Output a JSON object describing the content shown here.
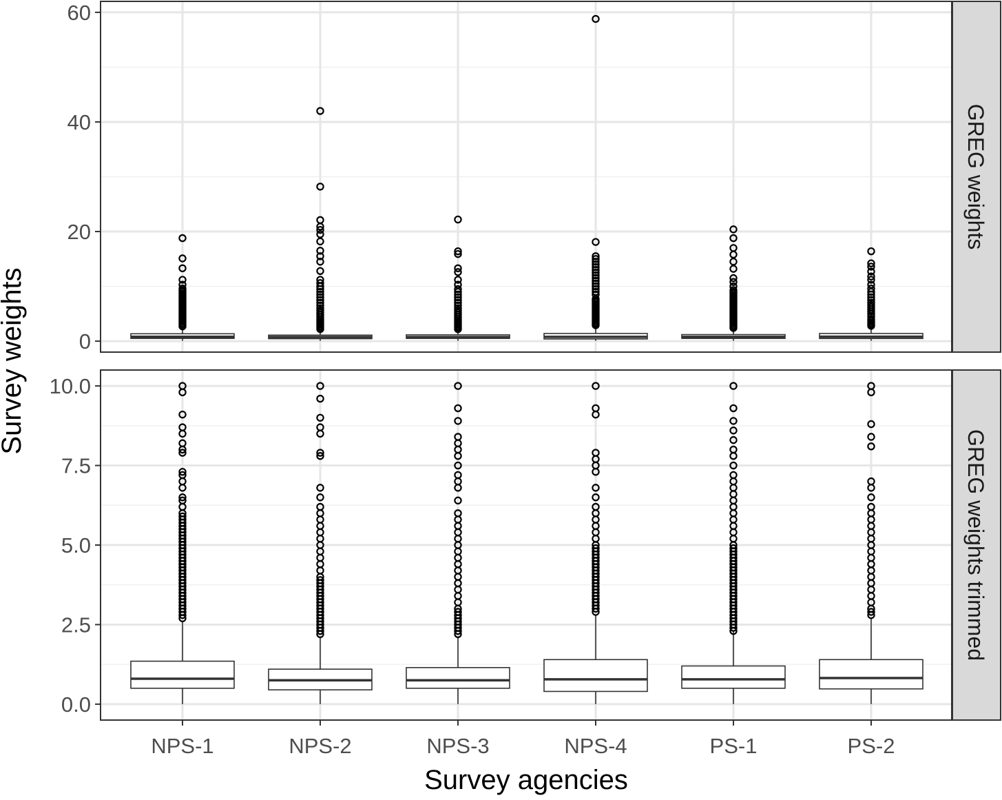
{
  "chart_data": {
    "type": "boxplot",
    "xlabel": "Survey agencies",
    "ylabel": "Survey weights",
    "categories": [
      "NPS-1",
      "NPS-2",
      "NPS-3",
      "NPS-4",
      "PS-1",
      "PS-2"
    ],
    "grid": true,
    "facets": [
      {
        "strip_label": "GREG weights",
        "ylim": [
          -2,
          62
        ],
        "yticks": [
          0,
          20,
          40,
          60
        ],
        "ytick_labels": [
          "0",
          "20",
          "40",
          "60"
        ],
        "boxes": [
          {
            "category": "NPS-1",
            "q1": 0.5,
            "median": 0.8,
            "q3": 1.35,
            "whisker_low": 0.05,
            "whisker_high": 2.6,
            "outliers": [
              2.7,
              3.0,
              3.3,
              3.6,
              3.9,
              4.2,
              4.5,
              4.8,
              5.1,
              5.4,
              5.7,
              6.0,
              6.3,
              6.6,
              6.9,
              7.2,
              7.5,
              7.8,
              8.1,
              8.4,
              8.7,
              9.0,
              9.3,
              9.6,
              10.3,
              11.2,
              13.3,
              15.1,
              18.8
            ]
          },
          {
            "category": "NPS-2",
            "q1": 0.45,
            "median": 0.75,
            "q3": 1.1,
            "whisker_low": 0.05,
            "whisker_high": 2.1,
            "outliers": [
              2.2,
              2.5,
              2.8,
              3.1,
              3.4,
              3.7,
              4.0,
              4.4,
              4.8,
              5.2,
              5.6,
              6.0,
              6.5,
              7.0,
              7.5,
              8.0,
              8.5,
              9.0,
              9.5,
              10.0,
              10.6,
              11.2,
              12.8,
              14.5,
              15.5,
              16.5,
              18.2,
              19.5,
              20.3,
              20.9,
              22.1,
              28.2,
              42.0
            ]
          },
          {
            "category": "NPS-3",
            "q1": 0.5,
            "median": 0.75,
            "q3": 1.15,
            "whisker_low": 0.05,
            "whisker_high": 2.1,
            "outliers": [
              2.2,
              2.5,
              2.8,
              3.1,
              3.4,
              3.7,
              4.0,
              4.4,
              4.8,
              5.2,
              5.6,
              6.0,
              6.5,
              7.0,
              7.5,
              8.0,
              8.5,
              9.0,
              9.5,
              10.3,
              11.2,
              12.6,
              13.3,
              15.9,
              16.4,
              22.2
            ]
          },
          {
            "category": "NPS-4",
            "q1": 0.4,
            "median": 0.78,
            "q3": 1.4,
            "whisker_low": 0.05,
            "whisker_high": 2.8,
            "outliers": [
              2.9,
              3.2,
              3.5,
              3.8,
              4.1,
              4.4,
              4.7,
              5.0,
              5.3,
              5.6,
              5.9,
              6.2,
              6.5,
              6.8,
              7.1,
              7.4,
              7.7,
              8.5,
              9.0,
              9.5,
              10.0,
              10.5,
              11.0,
              11.5,
              12.0,
              12.5,
              13.0,
              13.5,
              14.0,
              14.5,
              15.0,
              15.5,
              18.1,
              58.8
            ]
          },
          {
            "category": "PS-1",
            "q1": 0.5,
            "median": 0.78,
            "q3": 1.2,
            "whisker_low": 0.05,
            "whisker_high": 2.3,
            "outliers": [
              2.4,
              2.7,
              3.0,
              3.3,
              3.6,
              3.9,
              4.2,
              4.5,
              4.8,
              5.1,
              5.4,
              5.7,
              6.0,
              6.3,
              6.6,
              6.9,
              7.2,
              7.5,
              7.8,
              8.1,
              8.4,
              8.7,
              9.0,
              9.3,
              10.0,
              10.8,
              11.5,
              13.2,
              14.5,
              15.8,
              17.0,
              18.8,
              20.4
            ]
          },
          {
            "category": "PS-2",
            "q1": 0.48,
            "median": 0.82,
            "q3": 1.4,
            "whisker_low": 0.05,
            "whisker_high": 2.7,
            "outliers": [
              2.8,
              3.1,
              3.4,
              3.7,
              4.0,
              4.5,
              5.0,
              5.4,
              5.8,
              6.2,
              6.6,
              7.0,
              7.5,
              8.0,
              8.5,
              9.0,
              9.6,
              10.3,
              11.2,
              11.8,
              12.7,
              13.6,
              14.2,
              16.4
            ]
          }
        ]
      },
      {
        "strip_label": "GREG weights trimmed",
        "ylim": [
          -0.5,
          10.5
        ],
        "yticks": [
          0,
          2.5,
          5,
          7.5,
          10
        ],
        "ytick_labels": [
          "0.0",
          "2.5",
          "5.0",
          "7.5",
          "10.0"
        ],
        "boxes": [
          {
            "category": "NPS-1",
            "q1": 0.5,
            "median": 0.8,
            "q3": 1.35,
            "whisker_low": 0.0,
            "whisker_high": 2.6,
            "outliers": [
              2.7,
              2.8,
              2.9,
              3.0,
              3.1,
              3.2,
              3.3,
              3.4,
              3.5,
              3.6,
              3.7,
              3.8,
              3.9,
              4.0,
              4.1,
              4.2,
              4.3,
              4.4,
              4.5,
              4.6,
              4.7,
              4.8,
              4.9,
              5.0,
              5.1,
              5.2,
              5.3,
              5.4,
              5.5,
              5.6,
              5.7,
              5.8,
              5.9,
              6.0,
              6.2,
              6.4,
              6.5,
              6.8,
              7.0,
              7.2,
              7.3,
              7.9,
              8.0,
              8.2,
              8.5,
              8.7,
              9.1,
              9.8,
              10.0
            ]
          },
          {
            "category": "NPS-2",
            "q1": 0.45,
            "median": 0.75,
            "q3": 1.1,
            "whisker_low": 0.0,
            "whisker_high": 2.1,
            "outliers": [
              2.2,
              2.3,
              2.4,
              2.5,
              2.6,
              2.7,
              2.8,
              2.9,
              3.0,
              3.1,
              3.2,
              3.3,
              3.4,
              3.5,
              3.6,
              3.7,
              3.8,
              3.9,
              4.0,
              4.2,
              4.4,
              4.6,
              4.8,
              5.0,
              5.2,
              5.4,
              5.6,
              5.8,
              6.0,
              6.2,
              6.5,
              6.8,
              7.8,
              7.9,
              8.5,
              8.7,
              9.0,
              9.6,
              10.0
            ]
          },
          {
            "category": "NPS-3",
            "q1": 0.5,
            "median": 0.75,
            "q3": 1.15,
            "whisker_low": 0.0,
            "whisker_high": 2.1,
            "outliers": [
              2.2,
              2.3,
              2.4,
              2.5,
              2.6,
              2.7,
              2.8,
              2.9,
              3.0,
              3.2,
              3.4,
              3.6,
              3.8,
              4.0,
              4.2,
              4.4,
              4.6,
              4.8,
              5.0,
              5.2,
              5.4,
              5.6,
              5.8,
              6.0,
              6.4,
              6.8,
              7.0,
              7.2,
              7.5,
              7.8,
              8.0,
              8.2,
              8.4,
              8.9,
              9.3,
              10.0
            ]
          },
          {
            "category": "NPS-4",
            "q1": 0.4,
            "median": 0.78,
            "q3": 1.4,
            "whisker_low": 0.0,
            "whisker_high": 2.8,
            "outliers": [
              2.9,
              3.0,
              3.1,
              3.2,
              3.3,
              3.4,
              3.5,
              3.6,
              3.7,
              3.8,
              3.9,
              4.0,
              4.1,
              4.2,
              4.3,
              4.4,
              4.5,
              4.6,
              4.7,
              4.8,
              4.9,
              5.0,
              5.2,
              5.4,
              5.6,
              5.8,
              6.0,
              6.2,
              6.5,
              6.8,
              7.3,
              7.5,
              7.7,
              7.9,
              9.1,
              9.3,
              10.0
            ]
          },
          {
            "category": "PS-1",
            "q1": 0.5,
            "median": 0.78,
            "q3": 1.2,
            "whisker_low": 0.0,
            "whisker_high": 2.3,
            "outliers": [
              2.3,
              2.4,
              2.5,
              2.6,
              2.7,
              2.8,
              2.9,
              3.0,
              3.1,
              3.2,
              3.3,
              3.4,
              3.5,
              3.6,
              3.7,
              3.8,
              3.9,
              4.0,
              4.1,
              4.2,
              4.3,
              4.4,
              4.5,
              4.6,
              4.7,
              4.8,
              4.9,
              5.0,
              5.2,
              5.4,
              5.6,
              5.8,
              6.0,
              6.2,
              6.4,
              6.6,
              6.8,
              7.0,
              7.2,
              7.5,
              7.8,
              8.0,
              8.3,
              8.6,
              8.9,
              9.3,
              10.0
            ]
          },
          {
            "category": "PS-2",
            "q1": 0.48,
            "median": 0.82,
            "q3": 1.4,
            "whisker_low": 0.0,
            "whisker_high": 2.7,
            "outliers": [
              2.8,
              2.9,
              3.0,
              3.2,
              3.4,
              3.6,
              3.8,
              4.0,
              4.2,
              4.4,
              4.6,
              4.8,
              5.0,
              5.2,
              5.4,
              5.6,
              5.8,
              6.0,
              6.2,
              6.5,
              6.8,
              7.0,
              8.1,
              8.4,
              8.8,
              9.8,
              10.0
            ]
          }
        ]
      }
    ]
  }
}
